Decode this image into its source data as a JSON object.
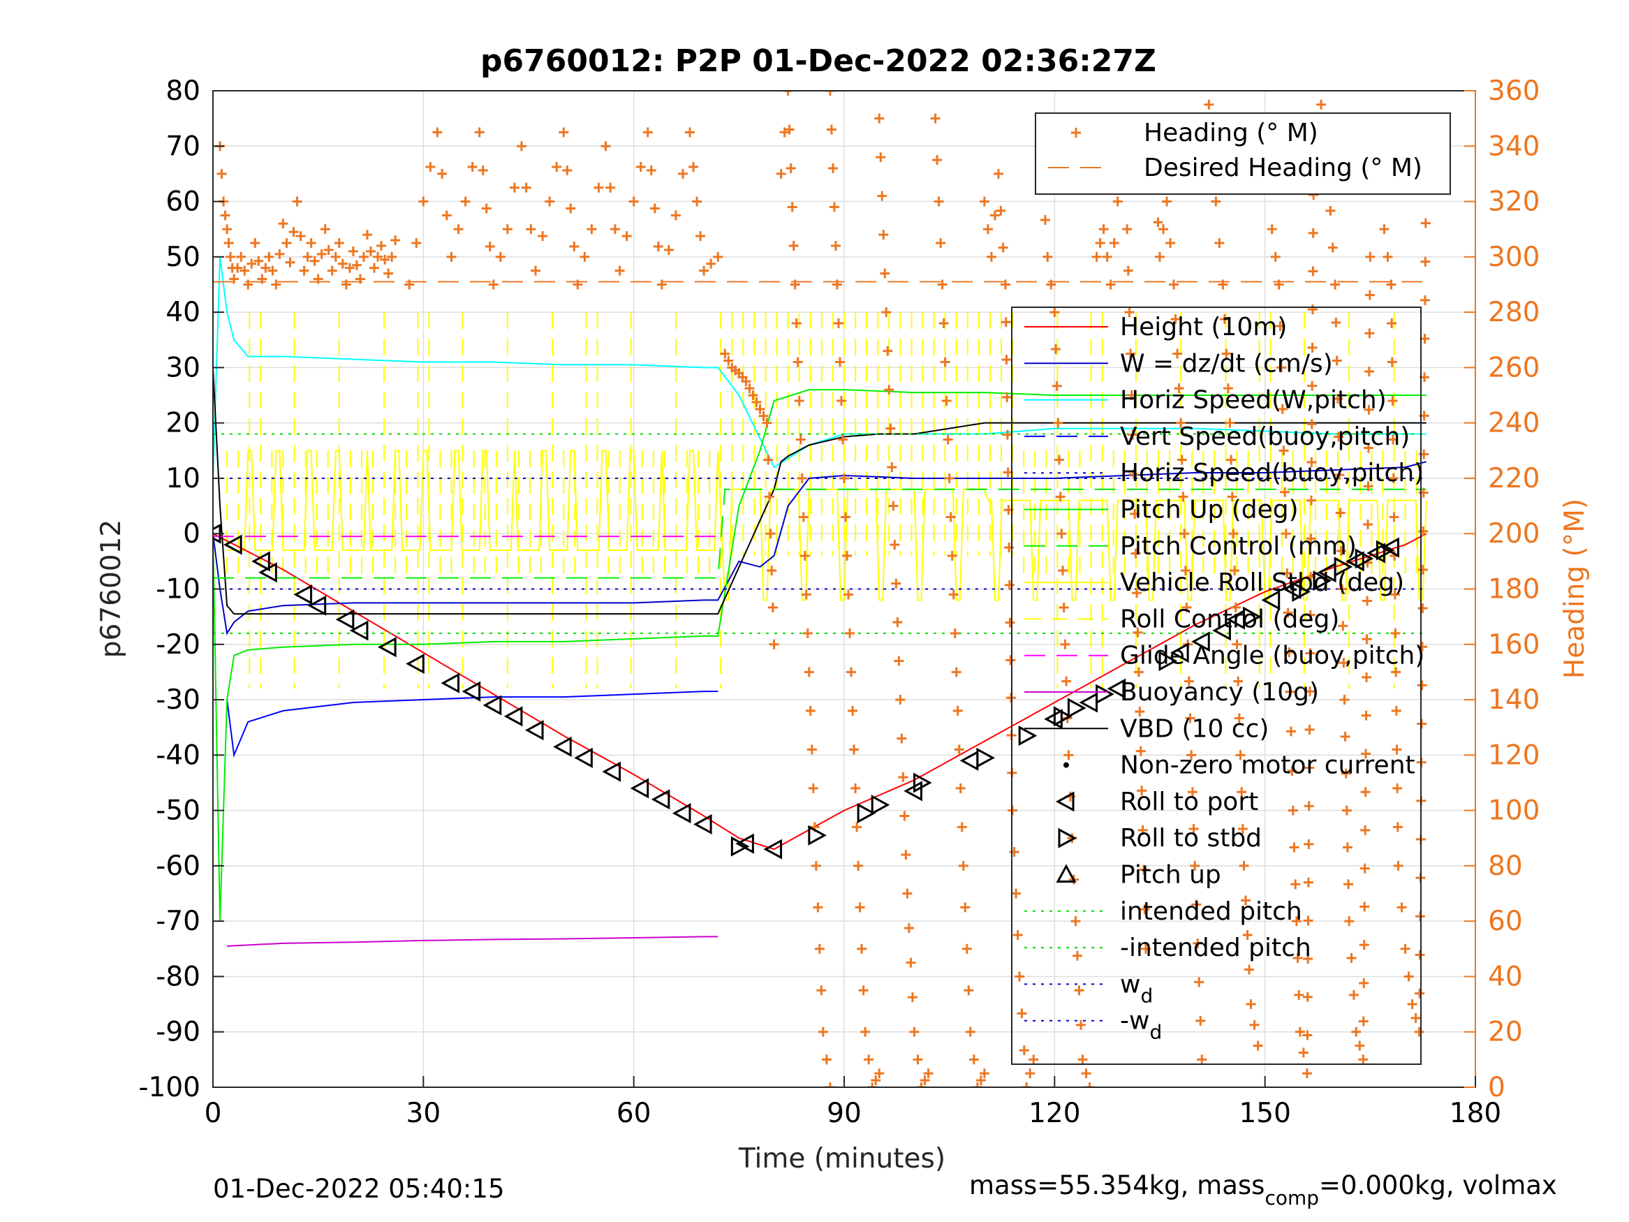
{
  "chart_data": {
    "type": "line",
    "title": "p6760012: P2P 01-Dec-2022 02:36:27Z",
    "xlabel": "Time (minutes)",
    "ylabel": "p6760012",
    "ylabel_right": "Heading (°M)",
    "xlim": [
      0,
      180
    ],
    "ylim": [
      -100,
      80
    ],
    "ylim_right": [
      0,
      360
    ],
    "x_ticks": [
      "0",
      "30",
      "60",
      "90",
      "120",
      "150",
      "180"
    ],
    "y_ticks": [
      "80",
      "70",
      "60",
      "50",
      "40",
      "30",
      "20",
      "10",
      "0",
      "-10",
      "-20",
      "-30",
      "-40",
      "-50",
      "-60",
      "-70",
      "-80",
      "-90",
      "-100"
    ],
    "y_ticks_right": [
      "360",
      "340",
      "320",
      "300",
      "280",
      "260",
      "240",
      "220",
      "200",
      "180",
      "160",
      "140",
      "120",
      "100",
      "80",
      "60",
      "40",
      "20",
      "0"
    ],
    "grid": true,
    "footer_left": "01-Dec-2022 05:40:15",
    "footer_right_prefix": "mass=55.354kg, mass",
    "footer_right_sub": "comp",
    "footer_right_suffix": "=0.000kg, volmax",
    "legend_heading": {
      "placement": "top-right",
      "entries": [
        "Heading (° M)",
        "Desired Heading (° M)"
      ]
    },
    "legend_main": {
      "placement": "right",
      "entries": [
        "Height (10m)",
        "W = dz/dt (cm/s)",
        "Horiz Speed(W,pitch)",
        "Vert Speed(buoy,pitch)",
        "Horiz Speed(buoy,pitch)",
        "Pitch Up (deg)",
        "Pitch Control (mm)",
        "Vehicle Roll Stbd (deg)",
        "Roll Control (deg)",
        "Glide Angle (buoy,pitch)",
        "Buoyancy (10g)",
        "VBD (10 cc)",
        "Non-zero motor current",
        "Roll to port",
        "Roll to stbd",
        "Pitch up",
        "intended pitch",
        "-intended pitch",
        "w",
        "-w"
      ],
      "wd_subscript": "d"
    },
    "colors": {
      "height": "#FF0000",
      "w": "#0000CD",
      "horiz_w": "#00FFFF",
      "vert_buoy": "#0000FF",
      "pitch": "#00EE00",
      "roll": "#FFFF00",
      "glide": "#FF00FF",
      "buoyancy": "#CC00CC",
      "vbd": "#000000",
      "heading": "#ED7620",
      "intended": "#00DD00",
      "wd": "#0000CC"
    },
    "series": [
      {
        "name": "Height (10m)",
        "x": [
          0,
          10,
          20,
          30,
          40,
          50,
          60,
          70,
          75,
          80,
          90,
          100,
          110,
          120,
          130,
          140,
          150,
          160,
          170,
          173
        ],
        "values": [
          0,
          -6.5,
          -14,
          -21.5,
          -29,
          -36.5,
          -43.5,
          -51,
          -55,
          -57,
          -50,
          -44.5,
          -37.5,
          -30.5,
          -23.5,
          -16.5,
          -10.5,
          -6,
          -2,
          0
        ]
      },
      {
        "name": "W = dz/dt (cm/s)",
        "x": [
          0,
          1,
          2,
          3,
          5,
          10,
          20,
          30,
          40,
          50,
          60,
          70,
          72,
          75,
          78,
          80,
          82,
          85,
          90,
          100,
          110,
          120,
          130,
          140,
          150,
          160,
          170,
          173
        ],
        "values": [
          0,
          -10,
          -18,
          -16,
          -14,
          -13,
          -12.5,
          -12.5,
          -12.5,
          -12.5,
          -12.5,
          -12,
          -12,
          -5,
          -6,
          -4,
          5,
          10,
          10.5,
          10,
          10,
          10,
          10.5,
          11,
          11,
          11.5,
          12,
          13
        ]
      },
      {
        "name": "Horiz Speed(W,pitch)",
        "x": [
          0,
          1,
          2,
          3,
          5,
          10,
          20,
          30,
          40,
          50,
          60,
          70,
          72,
          75,
          80,
          85,
          90,
          100,
          110,
          120,
          130,
          140,
          150,
          160,
          170,
          173
        ],
        "values": [
          10,
          50,
          40,
          35,
          32,
          32,
          31.5,
          31,
          31,
          30.5,
          30.5,
          30,
          30,
          25,
          12,
          16,
          18,
          18,
          18,
          19,
          19,
          19,
          18.5,
          18,
          18,
          18
        ]
      },
      {
        "name": "Vert Speed(buoy,pitch)",
        "x": [
          2,
          3,
          5,
          10,
          20,
          30,
          40,
          50,
          60,
          70,
          72
        ],
        "values": [
          -30,
          -40,
          -34,
          -32,
          -30.5,
          -30,
          -29.5,
          -29.5,
          -29,
          -28.5,
          -28.5
        ]
      },
      {
        "name": "Pitch Up (deg)",
        "x": [
          0,
          1,
          2,
          3,
          5,
          10,
          20,
          30,
          40,
          50,
          60,
          70,
          72,
          75,
          78,
          80,
          85,
          90,
          100,
          110,
          120,
          130,
          140,
          150,
          160,
          170,
          173
        ],
        "values": [
          0,
          -70,
          -30,
          -22,
          -21,
          -20.5,
          -20,
          -20,
          -19.5,
          -19.5,
          -19,
          -18.5,
          -18.5,
          5,
          15,
          24,
          26,
          26,
          25.5,
          25.5,
          25,
          25,
          25,
          25,
          25,
          25,
          25
        ]
      },
      {
        "name": "Buoyancy (10g)",
        "x": [
          2,
          10,
          20,
          30,
          40,
          50,
          60,
          70,
          72
        ],
        "values": [
          -74.5,
          -74,
          -73.8,
          -73.5,
          -73.3,
          -73.2,
          -73,
          -72.8,
          -72.8
        ]
      },
      {
        "name": "VBD (10 cc)",
        "x": [
          0,
          1,
          2,
          3,
          10,
          20,
          30,
          40,
          50,
          60,
          70,
          72,
          80,
          81,
          82,
          85,
          90,
          95,
          100,
          110,
          120,
          130,
          140,
          150,
          160,
          170,
          173
        ],
        "values": [
          30,
          5,
          -13,
          -14.5,
          -14.5,
          -14.5,
          -14.5,
          -14.5,
          -14.5,
          -14.5,
          -14.5,
          -14.5,
          8,
          13,
          14,
          16,
          17.5,
          18,
          18,
          20,
          20,
          20,
          20,
          20,
          20,
          20,
          20
        ]
      },
      {
        "name": "Glide Angle (buoy,pitch)",
        "x": [
          0,
          72
        ],
        "values": [
          -0.5,
          -0.5
        ]
      },
      {
        "name": "intended pitch",
        "x": [
          0,
          173
        ],
        "values": [
          18,
          18
        ]
      },
      {
        "name": "-intended pitch",
        "x": [
          0,
          173
        ],
        "values": [
          -18,
          -18
        ]
      },
      {
        "name": "w",
        "x": [
          0,
          173
        ],
        "values": [
          10,
          10
        ]
      },
      {
        "name": "-w",
        "x": [
          0,
          173
        ],
        "values": [
          -10,
          -10
        ]
      },
      {
        "name": "Pitch Control (mm)",
        "x": [
          0,
          72,
          73,
          173
        ],
        "values": [
          -8,
          -8,
          8,
          8
        ]
      },
      {
        "name": "Desired Heading (° M)",
        "x": [
          0,
          173
        ],
        "values": [
          291,
          291
        ]
      }
    ],
    "heading_segments": [
      {
        "x": [
          1,
          1.5,
          2,
          2.5,
          3,
          4,
          5,
          6,
          7,
          8,
          9,
          10,
          11,
          12,
          13,
          14,
          15,
          16,
          17,
          18,
          19,
          20,
          21,
          22,
          23,
          24,
          25,
          26
        ],
        "values": [
          340,
          320,
          310,
          300,
          292,
          300,
          290,
          305,
          292,
          300,
          290,
          312,
          298,
          320,
          295,
          305,
          292,
          310,
          295,
          305,
          290,
          302,
          292,
          308,
          296,
          304,
          294,
          306
        ]
      },
      {
        "x": [
          28,
          30,
          32,
          34,
          36,
          38,
          40,
          42,
          44,
          46,
          48,
          50,
          52,
          54,
          56,
          58,
          60,
          62,
          64,
          66,
          68,
          70,
          72
        ],
        "values": [
          290,
          320,
          345,
          300,
          320,
          345,
          290,
          310,
          340,
          295,
          320,
          345,
          290,
          310,
          340,
          295,
          320,
          345,
          290,
          315,
          345,
          295,
          300
        ]
      },
      {
        "x": [
          73,
          74,
          75,
          76,
          77,
          78,
          79,
          80
        ],
        "values": [
          265,
          260,
          258,
          255,
          250,
          245,
          240,
          160
        ]
      },
      {
        "x": [
          81,
          82,
          83,
          84,
          85,
          86,
          87,
          88
        ],
        "values": [
          330,
          360,
          290,
          220,
          150,
          80,
          20,
          0
        ]
      },
      {
        "x": [
          88,
          89,
          90,
          91,
          92,
          93,
          94,
          95
        ],
        "values": [
          360,
          290,
          220,
          150,
          80,
          20,
          0,
          5
        ]
      },
      {
        "x": [
          95,
          96,
          97,
          98,
          99,
          100,
          101,
          102
        ],
        "values": [
          350,
          280,
          210,
          140,
          70,
          20,
          0,
          5
        ]
      },
      {
        "x": [
          103,
          104,
          105,
          106,
          107,
          108,
          109,
          110
        ],
        "values": [
          350,
          290,
          220,
          150,
          80,
          20,
          0,
          5
        ]
      },
      {
        "x": [
          110,
          111,
          112,
          113,
          114,
          115,
          116,
          117
        ],
        "values": [
          320,
          300,
          330,
          290,
          100,
          40,
          0,
          10
        ]
      },
      {
        "x": [
          118,
          119,
          120,
          121,
          122,
          123,
          124,
          125
        ],
        "values": [
          340,
          300,
          280,
          200,
          120,
          60,
          10,
          0
        ]
      },
      {
        "x": [
          126,
          127,
          128,
          129,
          130,
          131,
          132,
          133
        ],
        "values": [
          300,
          310,
          290,
          320,
          340,
          250,
          150,
          50
        ]
      },
      {
        "x": [
          134,
          135,
          136,
          137,
          138,
          139,
          140,
          141
        ],
        "values": [
          350,
          300,
          320,
          290,
          240,
          160,
          80,
          10
        ]
      },
      {
        "x": [
          142,
          143,
          144,
          145,
          146,
          147,
          148,
          149
        ],
        "values": [
          355,
          320,
          290,
          240,
          160,
          80,
          30,
          15
        ]
      },
      {
        "x": [
          150,
          151,
          152,
          153,
          154,
          155,
          156,
          157
        ],
        "values": [
          340,
          310,
          290,
          200,
          100,
          20,
          5,
          350
        ]
      },
      {
        "x": [
          158,
          159,
          160,
          161,
          162,
          163,
          164,
          165
        ],
        "values": [
          355,
          330,
          290,
          180,
          60,
          20,
          10,
          300
        ]
      },
      {
        "x": [
          166,
          167,
          168,
          169,
          170,
          171,
          172,
          173
        ],
        "values": [
          340,
          310,
          290,
          80,
          50,
          30,
          20,
          340
        ]
      }
    ],
    "roll_to_port": [
      [
        0,
        0
      ],
      [
        3,
        -2
      ],
      [
        7,
        -5
      ],
      [
        8,
        -7
      ],
      [
        13,
        -11
      ],
      [
        15,
        -13
      ],
      [
        19,
        -15.5
      ],
      [
        21,
        -17.5
      ],
      [
        25,
        -20.5
      ],
      [
        29,
        -23.5
      ],
      [
        34,
        -27
      ],
      [
        37,
        -28.5
      ],
      [
        40,
        -31
      ],
      [
        43,
        -33
      ],
      [
        46,
        -35.5
      ],
      [
        50,
        -38.5
      ],
      [
        53,
        -40.5
      ],
      [
        57,
        -43
      ],
      [
        61,
        -46
      ],
      [
        64,
        -48
      ],
      [
        67,
        -50.5
      ],
      [
        70,
        -52.5
      ],
      [
        76,
        -56
      ],
      [
        80,
        -57
      ],
      [
        100,
        -46.5
      ],
      [
        108,
        -41
      ],
      [
        120,
        -33.5
      ],
      [
        125,
        -30.5
      ],
      [
        129,
        -28
      ],
      [
        138,
        -21.5
      ],
      [
        141,
        -19.5
      ],
      [
        144,
        -17.5
      ],
      [
        146,
        -15.5
      ],
      [
        151,
        -12
      ],
      [
        154,
        -10
      ],
      [
        159,
        -7
      ],
      [
        163,
        -5
      ],
      [
        166,
        -3.5
      ],
      [
        168,
        -2.5
      ]
    ],
    "roll_to_stbd": [
      [
        75,
        -56.5
      ],
      [
        86,
        -54.5
      ],
      [
        93,
        -50.5
      ],
      [
        95,
        -49
      ],
      [
        101,
        -45
      ],
      [
        110,
        -40.5
      ],
      [
        116,
        -36.5
      ],
      [
        121,
        -33
      ],
      [
        123,
        -31.5
      ],
      [
        127,
        -29
      ],
      [
        136,
        -23
      ],
      [
        148,
        -15
      ],
      [
        155,
        -10.5
      ],
      [
        158,
        -8.5
      ],
      [
        161,
        -6
      ],
      [
        164,
        -4.5
      ],
      [
        167,
        -3
      ]
    ]
  }
}
